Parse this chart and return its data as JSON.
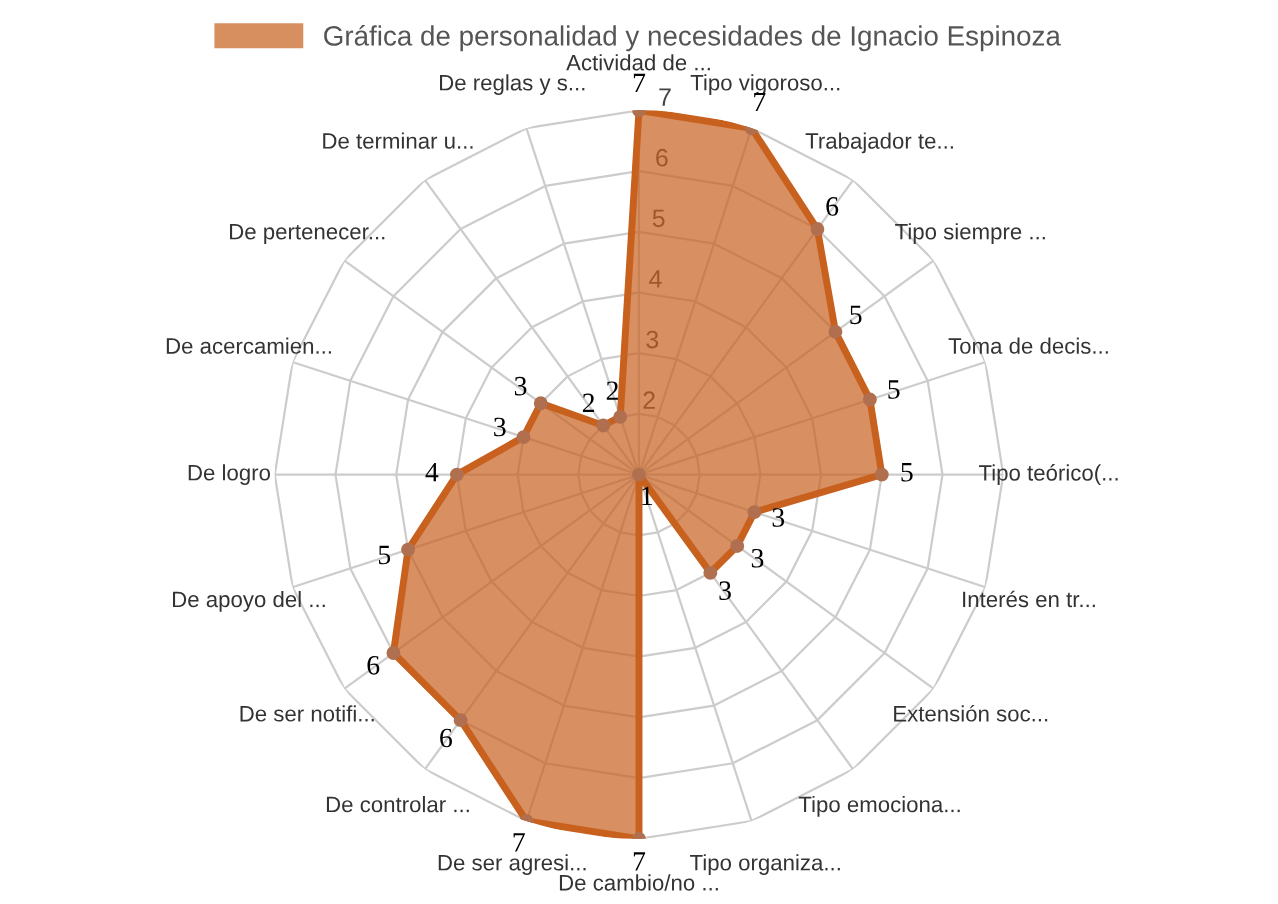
{
  "chart_data": {
    "type": "radar",
    "categories": [
      "Actividad de ...",
      "Tipo vigoroso...",
      "Trabajador te...",
      "Tipo siempre ...",
      "Toma de decis...",
      "Tipo teórico(...",
      "Interés en tr...",
      "Extensión soc...",
      "Tipo emociona...",
      "Tipo organiza...",
      "De cambio/no ...",
      "De ser agresi...",
      "De controlar ...",
      "De ser notifi...",
      "De apoyo del ...",
      "De logro",
      "De acercamien...",
      "De pertenecer...",
      "De terminar u...",
      "De reglas y s..."
    ],
    "series": [
      {
        "name": "Gráfica de personalidad y necesidades de Ignacio Espinoza",
        "color": "#c8601e",
        "values": [
          7,
          7,
          6,
          5,
          5,
          5,
          3,
          3,
          3,
          1,
          7,
          7,
          6,
          6,
          5,
          4,
          3,
          3,
          2,
          2
        ]
      }
    ],
    "ylim": [
      1,
      7
    ],
    "yticks": [
      2,
      3,
      4,
      5,
      6,
      7
    ],
    "grid": true,
    "legend": "top",
    "data_labels": true,
    "marker": "circle"
  }
}
